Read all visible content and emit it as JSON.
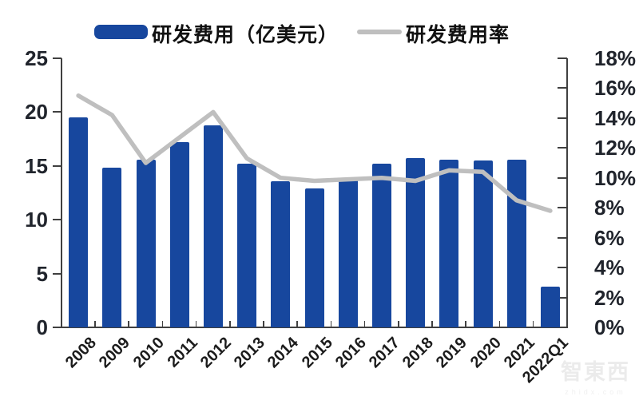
{
  "legend": {
    "bar_label": "研发费用（亿美元）",
    "line_label": "研发费用率"
  },
  "colors": {
    "bar": "#17479E",
    "line": "#BFBFBF",
    "axis": "#404040",
    "tick_text": "#20242c"
  },
  "chart_data": {
    "type": "bar",
    "title": "",
    "xlabel": "",
    "ylabel": "",
    "categories": [
      "2008",
      "2009",
      "2010",
      "2011",
      "2012",
      "2013",
      "2014",
      "2015",
      "2016",
      "2017",
      "2018",
      "2019",
      "2020",
      "2021",
      "2022Q1"
    ],
    "series": [
      {
        "name": "研发费用（亿美元）",
        "type": "bar",
        "axis": "left",
        "values": [
          19.5,
          14.8,
          15.6,
          17.2,
          18.8,
          15.2,
          13.6,
          12.9,
          13.7,
          15.2,
          15.7,
          15.6,
          15.5,
          15.6,
          3.8
        ]
      },
      {
        "name": "研发费用率",
        "type": "line",
        "axis": "right",
        "values_percent": [
          15.5,
          14.2,
          11.0,
          12.7,
          14.4,
          11.3,
          10.0,
          9.8,
          9.9,
          10.0,
          9.8,
          10.5,
          10.4,
          8.5,
          7.8
        ]
      }
    ],
    "left_axis": {
      "min": 0,
      "max": 25,
      "tick_labels": [
        "25",
        "20",
        "15",
        "10",
        "5",
        "0"
      ]
    },
    "right_axis": {
      "min": 0,
      "max": 18,
      "tick_labels": [
        "18%",
        "16%",
        "14%",
        "12%",
        "10%",
        "8%",
        "6%",
        "4%",
        "2%",
        "0%"
      ]
    },
    "grid": false,
    "legend_position": "top"
  },
  "watermark": {
    "text": "智東西",
    "subtext": "zhidx.com"
  }
}
